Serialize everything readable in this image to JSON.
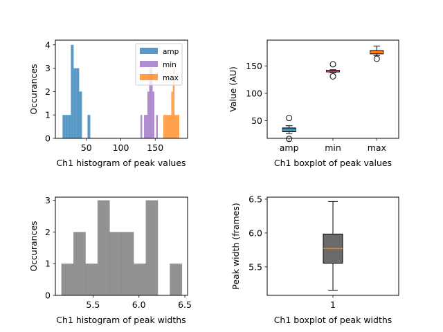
{
  "chart_data": [
    {
      "type": "histogram",
      "xlabel": "Ch1 histogram of peak values",
      "ylabel": "Occurances",
      "xlim": [
        5,
        197
      ],
      "ylim": [
        0,
        4.2
      ],
      "xticks": [
        50,
        100,
        150
      ],
      "yticks": [
        0,
        1,
        2,
        3,
        4
      ],
      "legend": {
        "placement": "top-right",
        "entries": [
          "amp",
          "min",
          "max"
        ]
      },
      "series": [
        {
          "name": "amp",
          "color": "#1f77b4",
          "bin_start": 15.4,
          "bin_width": 4.03,
          "counts": [
            1,
            1,
            1,
            4,
            3,
            3,
            2,
            0,
            0,
            1
          ]
        },
        {
          "name": "min",
          "color": "#9467bd",
          "bin_start": 128.6,
          "bin_width": 2.52,
          "counts": [
            1,
            0,
            1,
            1,
            2,
            3,
            3,
            2,
            0,
            1
          ]
        },
        {
          "name": "max",
          "color": "#ff7f0e",
          "bin_start": 161.7,
          "bin_width": 2.33,
          "counts": [
            1,
            1,
            1,
            1,
            1,
            2,
            3,
            1,
            1,
            1
          ]
        }
      ]
    },
    {
      "type": "boxplot",
      "xlabel": "Ch1 boxplot of peak values",
      "ylabel": "Value (AU)",
      "ylim": [
        18,
        197
      ],
      "yticks": [
        50,
        100,
        150
      ],
      "categories": [
        "amp",
        "min",
        "max"
      ],
      "boxes": [
        {
          "name": "amp",
          "color": "#1f77b4",
          "median_color": "#5fa8b4",
          "q1": 30,
          "median": 33,
          "q3": 37,
          "whisker_low": 27,
          "whisker_high": 41,
          "fliers": [
            17,
            55
          ]
        },
        {
          "name": "min",
          "color": "#e377c2",
          "median_color": "#d62728",
          "q1": 139,
          "median": 140,
          "q3": 142,
          "whisker_low": 138,
          "whisker_high": 143,
          "fliers": [
            131,
            153
          ]
        },
        {
          "name": "max",
          "color": "#ff7f0e",
          "median_color": "#ff7f0e",
          "q1": 172,
          "median": 175,
          "q3": 178,
          "whisker_low": 169,
          "whisker_high": 186,
          "fliers": [
            163
          ]
        }
      ]
    },
    {
      "type": "histogram",
      "xlabel": "Ch1 histogram of peak widths",
      "ylabel": "Occurances",
      "xlim": [
        5.09,
        6.53
      ],
      "ylim": [
        0,
        3.1
      ],
      "xticks": [
        5.5,
        6.0,
        6.5
      ],
      "yticks": [
        0,
        1,
        2,
        3
      ],
      "color": "#7f7f7f",
      "bin_start": 5.155,
      "bin_width": 0.1313,
      "counts": [
        1,
        2,
        1,
        3,
        2,
        2,
        1,
        3,
        0,
        1
      ]
    },
    {
      "type": "boxplot",
      "xlabel": "Ch1 boxplot of peak widths",
      "ylabel": "Peak width (frames)",
      "ylim": [
        5.08,
        6.53
      ],
      "yticks": [
        5.5,
        6.0,
        6.5
      ],
      "categories": [
        "1"
      ],
      "boxes": [
        {
          "name": "1",
          "color": "#6b6b6b",
          "median_color": "#ff7f0e",
          "q1": 5.555,
          "median": 5.77,
          "q3": 5.985,
          "whisker_low": 5.155,
          "whisker_high": 6.465,
          "fliers": []
        }
      ]
    }
  ]
}
